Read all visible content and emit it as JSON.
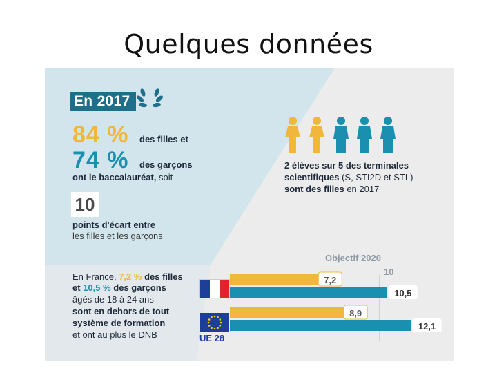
{
  "slide": {
    "title": "Quelques données"
  },
  "infographic": {
    "year_badge": "En 2017",
    "girls_pct": "84 %",
    "girls_label": "des filles et",
    "boys_pct": "74 %",
    "boys_label": "des garçons",
    "bac_label_bold": "ont le baccalauréat,",
    "bac_label_rest": "soit",
    "points_value": "10",
    "points_line1": "points d'écart entre",
    "points_line2": "les filles et les garçons",
    "right_line1": "2 élèves sur 5 des terminales",
    "right_line2_bold": "scientifiques",
    "right_line2_rest": "(S, STI2D et STL)",
    "right_line3_bold": "sont des filles",
    "right_line3_rest": "en 2017",
    "people": [
      "girl",
      "girl",
      "boy",
      "boy",
      "boy"
    ],
    "stat_line1_a": "En France,",
    "stat_line1_b": "7,2 %",
    "stat_line1_c": "des filles",
    "stat_line2_a": "et",
    "stat_line2_b": "10,5 %",
    "stat_line2_c": "des garçons",
    "stat_line3": "âgés de 18 à 24 ans",
    "stat_line4": "sont en dehors de tout",
    "stat_line5": "système de formation",
    "stat_line6": "et ont au plus le DNB",
    "objective_label": "Objectif 2020",
    "objective_value": "10",
    "eu_label": "UE 28"
  },
  "colors": {
    "girls": "#f0b73c",
    "boys": "#1a8fb0",
    "badge": "#1f6f8b",
    "eu": "#1d3f9a"
  },
  "chart_data": {
    "type": "bar",
    "title": "Objectif 2020",
    "categories": [
      "France",
      "UE 28"
    ],
    "series": [
      {
        "name": "filles",
        "values": [
          7.2,
          8.9
        ]
      },
      {
        "name": "garçons",
        "values": [
          10.5,
          12.1
        ]
      }
    ],
    "value_labels": [
      [
        "7,2",
        "10,5"
      ],
      [
        "8,9",
        "12,1"
      ]
    ],
    "objective": 10,
    "xlim": [
      0,
      13
    ]
  }
}
